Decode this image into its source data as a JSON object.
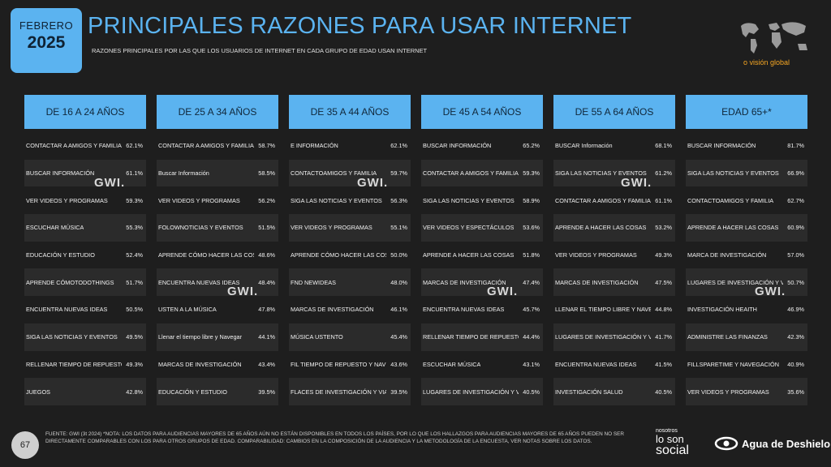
{
  "header": {
    "month": "FEBRERO",
    "year": "2025",
    "title": "PRINCIPALES RAZONES PARA USAR INTERNET",
    "subtitle": "RAZONES PRINCIPALES POR LAS QUE LOS USUARIOS DE INTERNET EN CADA GRUPO DE EDAD USAN INTERNET",
    "brand": "o visión global"
  },
  "watermark_text": "GWI.",
  "columns": [
    {
      "header": "DE 16 A 24 AÑOS",
      "rows": [
        {
          "label": "CONTACTAR A AMIGOS Y FAMILIARES",
          "value": "62.1%"
        },
        {
          "label": "BUSCAR INFORMACIÓN",
          "value": "61.1%"
        },
        {
          "label": "VER VIDEOS Y PROGRAMAS",
          "value": "59.3%"
        },
        {
          "label": "ESCUCHAR MÚSICA",
          "value": "55.3%"
        },
        {
          "label": "EDUCACIÓN Y ESTUDIO",
          "value": "52.4%"
        },
        {
          "label": "APRENDE CÓMOTODOTHINGS",
          "value": "51.7%"
        },
        {
          "label": "ENCUENTRA NUEVAS IDEAS",
          "value": "50.5%"
        },
        {
          "label": "SIGA LAS NOTICIAS Y EVENTOS",
          "value": "49.5%"
        },
        {
          "label": "RELLENAR TIEMPO DE REPUESTO Y NAVEGACIÓN",
          "value": "49.3%"
        },
        {
          "label": "JUEGOS",
          "value": "42.8%"
        }
      ]
    },
    {
      "header": "DE 25 A 34 AÑOS",
      "rows": [
        {
          "label": "CONTACTAR A AMIGOS Y FAMILIARES",
          "value": "58.7%"
        },
        {
          "label": "Buscar Información",
          "value": "58.5%"
        },
        {
          "label": "VER VIDEOS Y PROGRAMAS",
          "value": "56.2%"
        },
        {
          "label": "FOLOWNOTICIAS Y EVENTOS",
          "value": "51.5%"
        },
        {
          "label": "APRENDE CÓMO HACER LAS COSAS",
          "value": "48.6%"
        },
        {
          "label": "ENCUENTRA NUEVAS IDEAS",
          "value": "48.4%"
        },
        {
          "label": "USTEN A LA MÚSICA",
          "value": "47.8%"
        },
        {
          "label": "Llenar el tiempo libre y Navegar",
          "value": "44.1%"
        },
        {
          "label": "MARCAS DE INVESTIGACIÓN",
          "value": "43.4%"
        },
        {
          "label": "EDUCACIÓN Y ESTUDIO",
          "value": "39.5%"
        }
      ]
    },
    {
      "header": "DE 35 A 44 AÑOS",
      "rows": [
        {
          "label": "E INFORMACIÓN",
          "value": "62.1%"
        },
        {
          "label": "CONTACTOAMIGOS Y FAMILIA",
          "value": "59.7%"
        },
        {
          "label": "SIGA LAS NOTICIAS Y EVENTOS",
          "value": "56.3%"
        },
        {
          "label": "VER VIDEOS Y PROGRAMAS",
          "value": "55.1%"
        },
        {
          "label": "APRENDE CÓMO HACER LAS COSAS",
          "value": "50.0%"
        },
        {
          "label": "FND NEWIDEAS",
          "value": "48.0%"
        },
        {
          "label": "MARCAS DE INVESTIGACIÓN",
          "value": "46.1%"
        },
        {
          "label": "MÚSICA USTENTO",
          "value": "45.4%"
        },
        {
          "label": "FIL TIEMPO DE REPUESTO Y NAVEGACIÓN",
          "value": "43.6%"
        },
        {
          "label": "FLACES DE INVESTIGACIÓN Y VIAJES",
          "value": "39.5%"
        }
      ]
    },
    {
      "header": "DE 45 A 54 AÑOS",
      "rows": [
        {
          "label": "BUSCAR INFORMACIÓN",
          "value": "65.2%"
        },
        {
          "label": "CONTACTAR A AMIGOS Y FAMILIARES",
          "value": "59.3%"
        },
        {
          "label": "SIGA LAS NOTICIAS Y EVENTOS",
          "value": "58.9%"
        },
        {
          "label": "VER VIDEOS Y ESPECTÁCULOS",
          "value": "53.6%"
        },
        {
          "label": "APRENDE A HACER LAS COSAS",
          "value": "51.8%"
        },
        {
          "label": "MARCAS DE INVESTIGACIÓN",
          "value": "47.4%"
        },
        {
          "label": "ENCUENTRA NUEVAS IDEAS",
          "value": "45.7%"
        },
        {
          "label": "RELLENAR TIEMPO DE REPUESTO Y NAVEGACIÓN",
          "value": "44.4%"
        },
        {
          "label": "ESCUCHAR MÚSICA",
          "value": "43.1%"
        },
        {
          "label": "LUGARES DE INVESTIGACIÓN Y VIAJES",
          "value": "40.5%"
        }
      ]
    },
    {
      "header": "DE 55 A 64 AÑOS",
      "rows": [
        {
          "label": "BUSCAR Información",
          "value": "68.1%"
        },
        {
          "label": "SIGA LAS NOTICIAS Y EVENTOS",
          "value": "61.2%"
        },
        {
          "label": "CONTACTAR A AMIGOS Y FAMILIARES",
          "value": "61.1%"
        },
        {
          "label": "APRENDE A HACER LAS COSAS",
          "value": "53.2%"
        },
        {
          "label": "VER VIDEOS Y PROGRAMAS",
          "value": "49.3%"
        },
        {
          "label": "MARCAS DE INVESTIGACIÓN",
          "value": "47.5%"
        },
        {
          "label": "LLENAR EL TIEMPO LIBRE Y NAVEGAR",
          "value": "44.8%"
        },
        {
          "label": "LUGARES DE INVESTIGACIÓN Y VIAJES",
          "value": "41.7%"
        },
        {
          "label": "ENCUENTRA NUEVAS IDEAS",
          "value": "41.5%"
        },
        {
          "label": "INVESTIGACIÓN SALUD",
          "value": "40.5%"
        }
      ]
    },
    {
      "header": "EDAD 65+*",
      "rows": [
        {
          "label": "BUSCAR INFORMACIÓN",
          "value": "81.7%"
        },
        {
          "label": "SIGA LAS NOTICIAS Y EVENTOS",
          "value": "66.9%"
        },
        {
          "label": "CONTACTOAMIGOS Y FAMILIA",
          "value": "62.7%"
        },
        {
          "label": "APRENDE A HACER LAS COSAS",
          "value": "60.9%"
        },
        {
          "label": "MARCA DE INVESTIGACIÓN",
          "value": "57.0%"
        },
        {
          "label": "LUGARES DE INVESTIGACIÓN Y VIAJES",
          "value": "50.7%"
        },
        {
          "label": "INVESTIGACIÓN HEAITH",
          "value": "46.9%"
        },
        {
          "label": "ADMINISTRE LAS FINANZAS",
          "value": "42.3%"
        },
        {
          "label": "FILLSPARETIME Y NAVEGACIÓN",
          "value": "40.9%"
        },
        {
          "label": "VER VIDEOS Y PROGRAMAS",
          "value": "35.6%"
        }
      ]
    }
  ],
  "footer": {
    "page_number": "67",
    "source": "FUENTE: GWI (3t 2024) *NOTA: LOS DATOS PARA AUDIENCIAS MAYORES DE 65 AÑOS AÚN NO ESTÁN DISPONIBLES EN TODOS LOS PAÍSES, POR LO QUE LOS HALLAZGOS PARA AUDIENCIAS MAYORES DE 65 AÑOS PUEDEN NO SER DIRECTAMENTE COMPARABLES CON LOS PARA OTROS GRUPOS DE EDAD. COMPARABILIDAD: CAMBIOS EN LA COMPOSICIÓN DE LA AUDIENCIA Y LA METODOLOGÍA DE LA ENCUESTA, VER NOTAS SOBRE LOS DATOS.",
    "logo1_line1": "nosotros",
    "logo1_line2": "lo son",
    "logo1_line3": "social",
    "logo2": "Agua de Deshielo"
  },
  "colors": {
    "accent": "#5bb3f0",
    "background": "#1e1e1e",
    "brand_orange": "#f5a623"
  }
}
